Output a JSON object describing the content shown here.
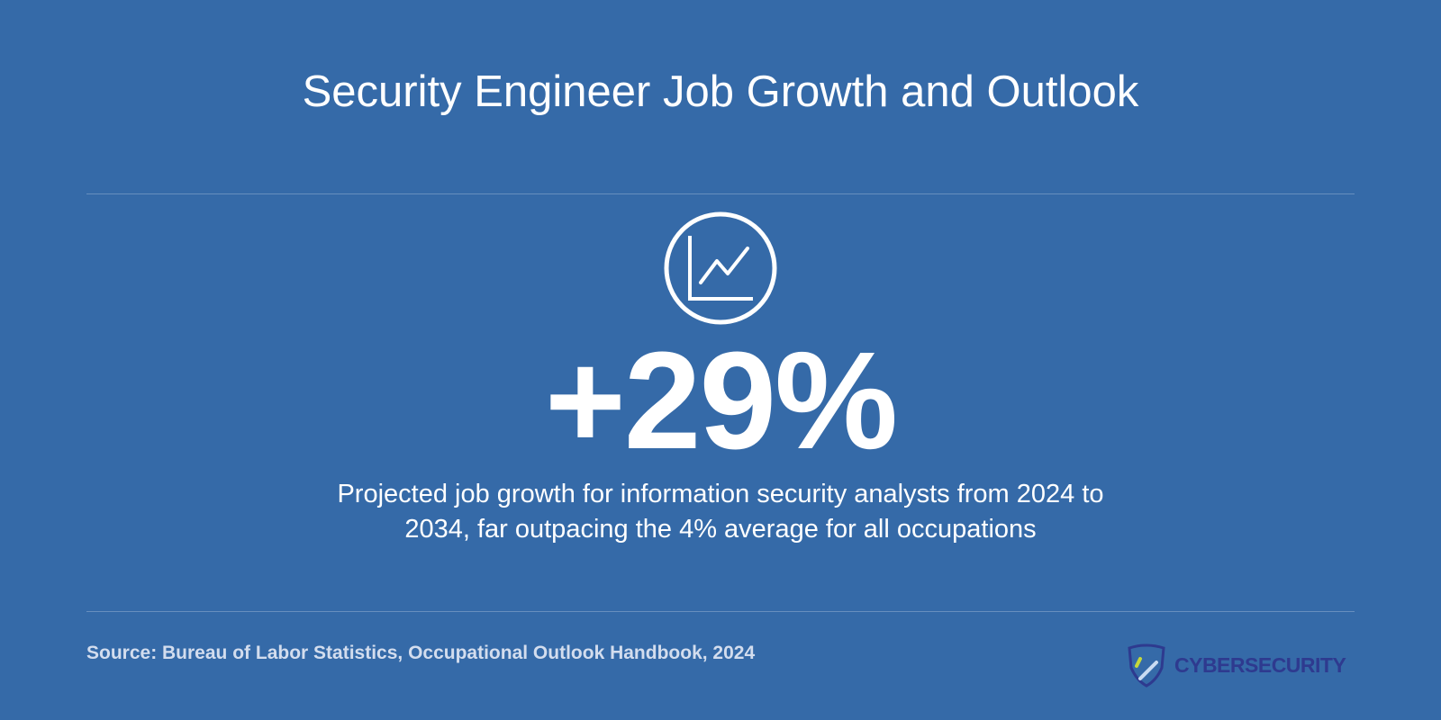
{
  "title": "Security Engineer Job Growth and Outlook",
  "stat": "+29%",
  "description": "Projected job growth for information security analysts from 2024 to 2034, far outpacing the 4% average for all occupations",
  "source": "Source: Bureau of Labor Statistics, Occupational Outlook Handbook, 2024",
  "logo": "CYBERSECURITY"
}
